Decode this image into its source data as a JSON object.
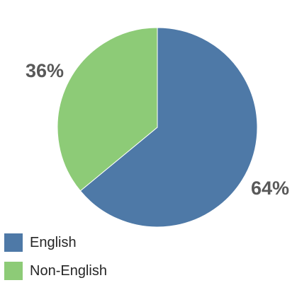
{
  "chart_data": {
    "type": "pie",
    "slices": [
      {
        "label": "English",
        "value": 64,
        "display": "64%",
        "color": "#4E79A7"
      },
      {
        "label": "Non-English",
        "value": 36,
        "display": "36%",
        "color": "#8DCB77"
      }
    ],
    "start_angle_deg": 0,
    "direction": "clockwise",
    "legend_position": "bottom-left"
  }
}
